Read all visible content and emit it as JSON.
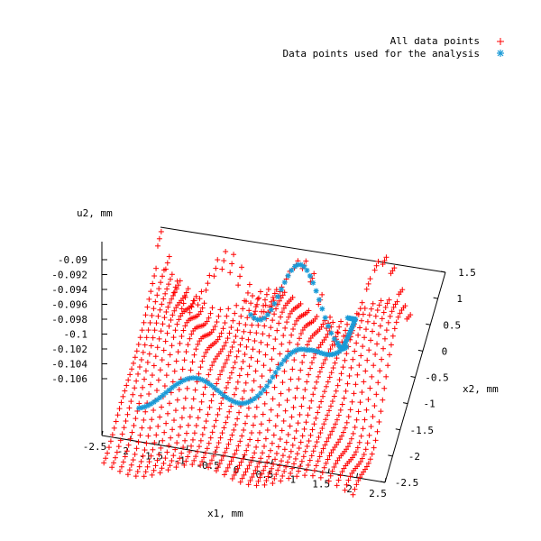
{
  "chart_data": {
    "type": "scatter",
    "projection": "3d",
    "title": "",
    "xlabel": "x1, mm",
    "ylabel": "x2, mm",
    "zlabel": "u2, mm",
    "xlim": [
      -2.5,
      2.5
    ],
    "ylim": [
      -2.5,
      1.5
    ],
    "zlim": [
      -0.106,
      -0.09
    ],
    "x_ticks": [
      "-2.5",
      "-2",
      "-1.5",
      "-1",
      "-0.5",
      "0",
      "0.5",
      "1",
      "1.5",
      "2",
      "2.5"
    ],
    "y_ticks": [
      "-2.5",
      "-2",
      "-1.5",
      "-1",
      "-0.5",
      "0",
      "0.5",
      "1",
      "1.5"
    ],
    "z_ticks": [
      "-0.09",
      "-0.092",
      "-0.094",
      "-0.096",
      "-0.098",
      "-0.1",
      "-0.102",
      "-0.104",
      "-0.106"
    ],
    "legend_position": "top-right",
    "series": [
      {
        "name": "All data points",
        "marker": "+",
        "color": "#ff0000",
        "grid": {
          "x_range": [
            -2.2,
            2.2
          ],
          "y_range": [
            -2.3,
            1.5
          ],
          "x_count": 32,
          "y_count": 34,
          "approx_u2_mean": -0.099
        }
      },
      {
        "name": "Data points used for the analysis",
        "marker": "*",
        "color": "#1a9bd7",
        "polyline_x1_x2": [
          [
            -1.9,
            -1.1
          ],
          [
            -1.2,
            -0.95
          ],
          [
            -0.5,
            -0.75
          ],
          [
            0.2,
            -0.5
          ],
          [
            0.8,
            -0.1
          ],
          [
            1.25,
            0.55
          ],
          [
            1.35,
            1.05
          ],
          [
            0.95,
            1.35
          ],
          [
            0.2,
            1.35
          ],
          [
            -0.6,
            1.2
          ]
        ]
      }
    ]
  }
}
